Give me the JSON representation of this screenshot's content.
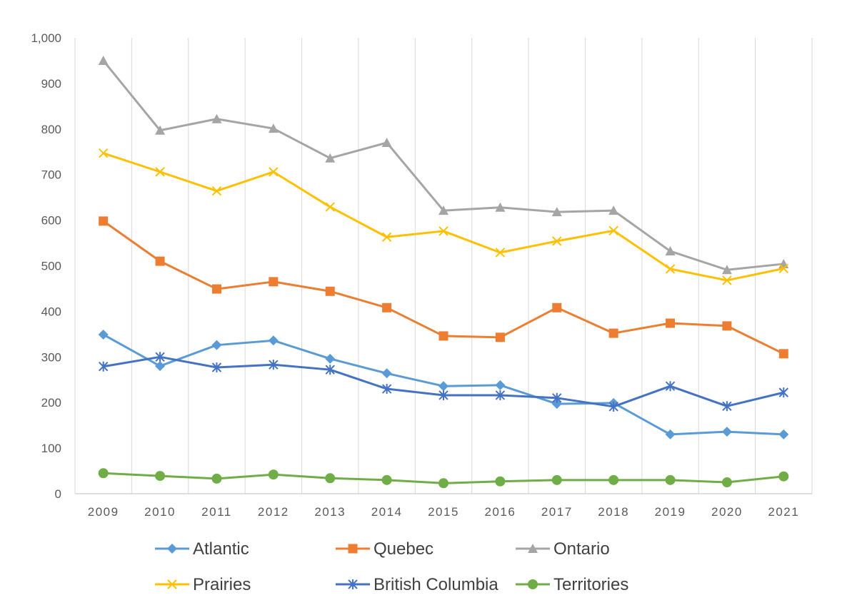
{
  "chart_data": {
    "type": "line",
    "title": "",
    "xlabel": "",
    "ylabel": "",
    "categories": [
      "2009",
      "2010",
      "2011",
      "2012",
      "2013",
      "2014",
      "2015",
      "2016",
      "2017",
      "2018",
      "2019",
      "2020",
      "2021"
    ],
    "ylim": [
      0,
      1000
    ],
    "yticks": [
      "0",
      "100",
      "200",
      "300",
      "400",
      "500",
      "600",
      "700",
      "800",
      "900",
      "1,000"
    ],
    "grid": "vertical",
    "legend_position": "bottom",
    "series": [
      {
        "name": "Atlantic",
        "color": "#5B9BD5",
        "marker": "diamond",
        "values": [
          349,
          280,
          326,
          336,
          296,
          264,
          236,
          238,
          197,
          199,
          130,
          136,
          130
        ]
      },
      {
        "name": "Quebec",
        "color": "#ED7D31",
        "marker": "square",
        "values": [
          598,
          510,
          449,
          465,
          444,
          408,
          346,
          343,
          408,
          352,
          374,
          368,
          307
        ]
      },
      {
        "name": "Ontario",
        "color": "#A5A5A5",
        "marker": "triangle",
        "values": [
          950,
          797,
          822,
          801,
          736,
          770,
          621,
          628,
          618,
          621,
          532,
          491,
          504
        ]
      },
      {
        "name": "Prairies",
        "color": "#FFC000",
        "marker": "x",
        "values": [
          747,
          706,
          664,
          706,
          629,
          563,
          576,
          529,
          554,
          577,
          493,
          468,
          494
        ]
      },
      {
        "name": "British Columbia",
        "color": "#4472C4",
        "marker": "star",
        "values": [
          279,
          300,
          277,
          283,
          272,
          230,
          216,
          216,
          210,
          191,
          236,
          192,
          222
        ]
      },
      {
        "name": "Territories",
        "color": "#70AD47",
        "marker": "circle",
        "values": [
          45,
          39,
          33,
          42,
          34,
          30,
          23,
          27,
          30,
          30,
          30,
          25,
          38
        ]
      }
    ]
  }
}
